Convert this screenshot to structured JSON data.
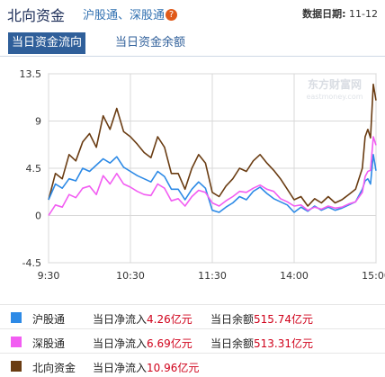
{
  "header": {
    "title": "北向资金",
    "subtitle": "沪股通、深股通",
    "help_glyph": "?",
    "date_label": "数据日期:",
    "date_value": "11-12"
  },
  "tabs": [
    {
      "label": "当日资金流向",
      "active": true
    },
    {
      "label": "当日资金余额",
      "active": false
    }
  ],
  "watermark": {
    "name": "东方财富网",
    "domain": "eastmoney.com"
  },
  "colors": {
    "hgt": "#2d8ae6",
    "sgt": "#f25df2",
    "north": "#6a3c12",
    "grid": "#d9d9d9",
    "red_value": "#d0021b"
  },
  "legend": [
    {
      "name": "沪股通",
      "flow_label": "当日净流入",
      "flow_value": "4.26亿元",
      "balance_label": "当日余额",
      "balance_value": "515.74亿元"
    },
    {
      "name": "深股通",
      "flow_label": "当日净流入",
      "flow_value": "6.69亿元",
      "balance_label": "当日余额",
      "balance_value": "513.31亿元"
    },
    {
      "name": "北向资金",
      "flow_label": "当日净流入",
      "flow_value": "10.96亿元",
      "balance_label": "",
      "balance_value": ""
    }
  ],
  "chart_data": {
    "type": "line",
    "ylim": [
      -4.5,
      13.5
    ],
    "yticks": [
      "13.5",
      "9",
      "4.5",
      "0",
      "-4.5"
    ],
    "ytick_values": [
      13.5,
      9,
      4.5,
      0,
      -4.5
    ],
    "xticks": [
      "9:30",
      "10:30",
      "11:30",
      "14:00",
      "15:00"
    ],
    "xtick_minutes": [
      0,
      60,
      120,
      180,
      240
    ],
    "x_unit": "minutes since 9:30 open (trading time)",
    "series": [
      {
        "name": "北向资金",
        "x": [
          0,
          5,
          10,
          15,
          20,
          25,
          30,
          35,
          40,
          45,
          50,
          55,
          60,
          65,
          70,
          75,
          80,
          85,
          90,
          95,
          100,
          105,
          110,
          115,
          120,
          125,
          130,
          135,
          140,
          145,
          150,
          155,
          160,
          165,
          170,
          175,
          180,
          185,
          190,
          195,
          200,
          205,
          210,
          215,
          220,
          225,
          230,
          232,
          234,
          236,
          238,
          240
        ],
        "values": [
          1.5,
          4.0,
          3.5,
          5.8,
          5.2,
          7.0,
          7.8,
          6.5,
          9.5,
          8.2,
          10.2,
          8.0,
          7.5,
          6.8,
          6.0,
          5.5,
          7.5,
          6.5,
          4.0,
          4.0,
          2.5,
          4.5,
          5.8,
          5.0,
          2.2,
          1.8,
          2.8,
          3.5,
          4.5,
          4.2,
          5.2,
          5.8,
          5.0,
          4.3,
          3.5,
          2.5,
          1.5,
          1.8,
          0.9,
          1.6,
          1.2,
          1.8,
          1.2,
          1.5,
          2.0,
          2.5,
          4.5,
          7.5,
          8.2,
          7.4,
          12.5,
          10.96
        ]
      },
      {
        "name": "沪股通",
        "x": [
          0,
          5,
          10,
          15,
          20,
          25,
          30,
          35,
          40,
          45,
          50,
          55,
          60,
          65,
          70,
          75,
          80,
          85,
          90,
          95,
          100,
          105,
          110,
          115,
          120,
          125,
          130,
          135,
          140,
          145,
          150,
          155,
          160,
          165,
          170,
          175,
          180,
          185,
          190,
          195,
          200,
          205,
          210,
          215,
          220,
          225,
          230,
          232,
          234,
          236,
          238,
          240
        ],
        "values": [
          1.5,
          3.0,
          2.6,
          3.5,
          3.3,
          4.5,
          4.2,
          4.8,
          5.4,
          5.0,
          5.6,
          4.6,
          4.2,
          3.8,
          3.5,
          3.2,
          4.2,
          3.7,
          2.5,
          2.5,
          1.5,
          2.5,
          3.2,
          2.6,
          0.5,
          0.3,
          0.8,
          1.2,
          1.8,
          1.5,
          2.3,
          2.7,
          2.1,
          1.6,
          1.3,
          1.0,
          0.3,
          0.8,
          0.4,
          0.9,
          0.5,
          0.8,
          0.5,
          0.7,
          1.0,
          1.3,
          2.5,
          3.3,
          3.5,
          3.0,
          5.8,
          4.26
        ]
      },
      {
        "name": "深股通",
        "x": [
          0,
          5,
          10,
          15,
          20,
          25,
          30,
          35,
          40,
          45,
          50,
          55,
          60,
          65,
          70,
          75,
          80,
          85,
          90,
          95,
          100,
          105,
          110,
          115,
          120,
          125,
          130,
          135,
          140,
          145,
          150,
          155,
          160,
          165,
          170,
          175,
          180,
          185,
          190,
          195,
          200,
          205,
          210,
          215,
          220,
          225,
          230,
          232,
          234,
          236,
          238,
          240
        ],
        "values": [
          0.0,
          1.0,
          0.8,
          2.0,
          1.7,
          2.6,
          2.8,
          2.0,
          3.8,
          3.0,
          4.0,
          3.0,
          2.7,
          2.3,
          2.0,
          1.9,
          3.0,
          2.6,
          1.4,
          1.6,
          0.9,
          1.8,
          2.4,
          2.2,
          1.2,
          0.9,
          1.4,
          1.8,
          2.3,
          2.2,
          2.6,
          2.9,
          2.5,
          2.3,
          1.6,
          1.3,
          0.9,
          1.0,
          0.5,
          0.8,
          0.6,
          0.9,
          0.7,
          0.8,
          1.1,
          1.3,
          2.2,
          3.7,
          4.2,
          4.3,
          7.5,
          6.69
        ]
      }
    ]
  }
}
